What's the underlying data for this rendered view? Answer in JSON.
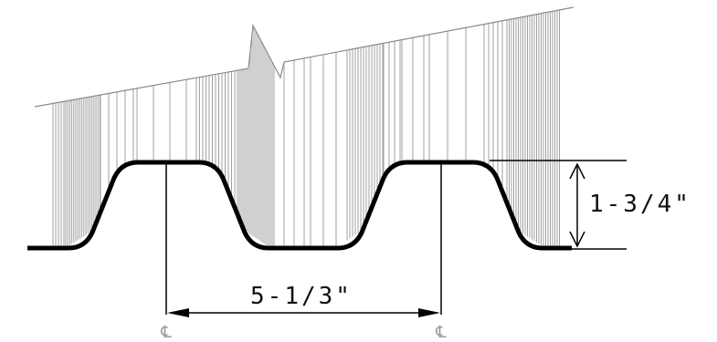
{
  "diagram": {
    "pitch_label": "5-1/3\"",
    "depth_label": "1-3/4\"",
    "centerline_symbol": "℄"
  },
  "colors": {
    "profile": "#000000",
    "dimension": "#000000",
    "hatch": "#9a9a9a",
    "centerline": "#9a9a9a",
    "background": "#ffffff"
  }
}
